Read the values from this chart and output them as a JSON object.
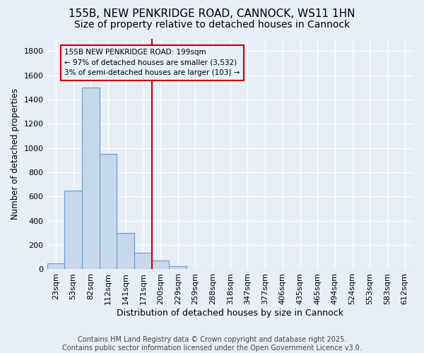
{
  "title1": "155B, NEW PENKRIDGE ROAD, CANNOCK, WS11 1HN",
  "title2": "Size of property relative to detached houses in Cannock",
  "xlabel": "Distribution of detached houses by size in Cannock",
  "ylabel": "Number of detached properties",
  "categories": [
    "23sqm",
    "53sqm",
    "82sqm",
    "112sqm",
    "141sqm",
    "171sqm",
    "200sqm",
    "229sqm",
    "259sqm",
    "288sqm",
    "318sqm",
    "347sqm",
    "377sqm",
    "406sqm",
    "435sqm",
    "465sqm",
    "494sqm",
    "524sqm",
    "553sqm",
    "583sqm",
    "612sqm"
  ],
  "values": [
    50,
    650,
    1500,
    950,
    300,
    135,
    70,
    25,
    5,
    1,
    0,
    0,
    0,
    0,
    0,
    0,
    0,
    0,
    0,
    0,
    0
  ],
  "bar_color": "#c8d8ec",
  "bar_edge_color": "#6699cc",
  "vline_color": "#cc0000",
  "vline_index": 6,
  "annotation_text": "155B NEW PENKRIDGE ROAD: 199sqm\n← 97% of detached houses are smaller (3,532)\n3% of semi-detached houses are larger (103) →",
  "background_color": "#e8eef5",
  "grid_color": "#ffffff",
  "ylim": [
    0,
    1900
  ],
  "yticks": [
    0,
    200,
    400,
    600,
    800,
    1000,
    1200,
    1400,
    1600,
    1800
  ],
  "footer1": "Contains HM Land Registry data © Crown copyright and database right 2025.",
  "footer2": "Contains public sector information licensed under the Open Government Licence v3.0.",
  "title1_fontsize": 11,
  "title2_fontsize": 10,
  "xlabel_fontsize": 9,
  "ylabel_fontsize": 8.5,
  "tick_fontsize": 8,
  "footer_fontsize": 7
}
